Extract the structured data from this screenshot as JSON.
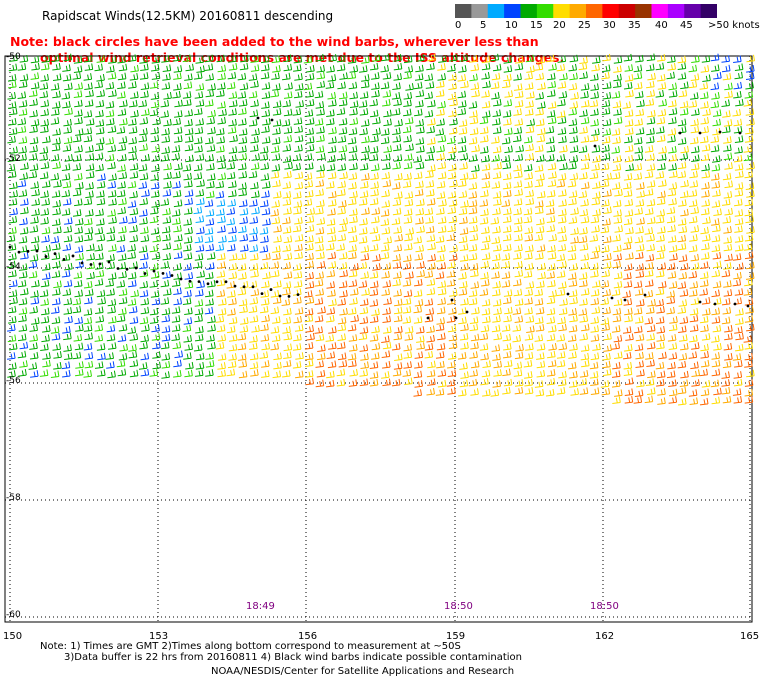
{
  "title": "Rapidscat Winds(12.5KM) 20160811 descending",
  "note_line1": "Note: black circles have been added to the wind barbs, wherever less than",
  "note_line2": "optimal wind retrieval conditions are met due to the ISS altitude changes.",
  "colorbar": {
    "labels": [
      "0",
      "5",
      "10",
      "15",
      "20",
      "25",
      "30",
      "35",
      "40",
      "45",
      ">50 knots"
    ],
    "colors": [
      "#555555",
      "#999999",
      "#00aaff",
      "#0044ff",
      "#00aa00",
      "#33dd00",
      "#ffdd00",
      "#ffaa00",
      "#ff6600",
      "#ff0000",
      "#cc0000",
      "#993300",
      "#ff00ff",
      "#aa00ff",
      "#6600aa",
      "#330066"
    ]
  },
  "lat_labels": [
    "-50",
    "-52",
    "-54",
    "-56",
    "-58",
    "-60"
  ],
  "lon_labels": [
    "150",
    "153",
    "156",
    "159",
    "162",
    "165"
  ],
  "time_labels": [
    "18:49",
    "18:50",
    "18:50"
  ],
  "footnote_line1": "Note: 1) Times are GMT 2)Times along bottom correspond to measurement at ~50S",
  "footnote_line2": "3)Data buffer is 22 hrs from 20160811 4) Black wind barbs indicate possible contamination",
  "credit": "NOAA/NESDIS/Center for Satellite Applications and Research"
}
